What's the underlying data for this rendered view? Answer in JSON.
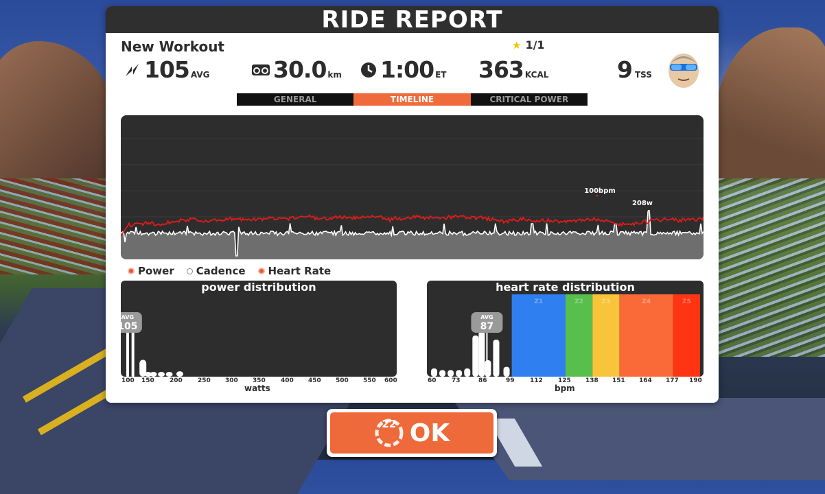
{
  "header": {
    "title": "RIDE REPORT"
  },
  "workout": {
    "name": "New Workout",
    "stars": "1/1"
  },
  "stats": {
    "power": {
      "value": "105",
      "unit": "AVG",
      "icon": "lightning-icon"
    },
    "distance": {
      "value": "30.0",
      "unit": "km",
      "icon": "bike-icon"
    },
    "time": {
      "value": "1:00",
      "unit": "ET",
      "icon": "clock-icon"
    },
    "calories": {
      "value": "363",
      "unit": "KCAL"
    },
    "tss": {
      "value": "9",
      "unit": "TSS"
    }
  },
  "tabs": [
    {
      "label": "GENERAL",
      "active": false
    },
    {
      "label": "TIMELINE",
      "active": true
    },
    {
      "label": "CRITICAL POWER",
      "active": false
    }
  ],
  "timeline": {
    "hr_max_label": "100bpm",
    "power_max_label": "208w",
    "colors": {
      "heart_rate": "#e21b1b",
      "power": "#ffffff",
      "area": "#6e6e6e"
    }
  },
  "legend": [
    {
      "label": "Power",
      "state": "on"
    },
    {
      "label": "Cadence",
      "state": "off"
    },
    {
      "label": "Heart Rate",
      "state": "on"
    }
  ],
  "power_distribution": {
    "title": "power distribution",
    "avg_label": "AVG",
    "avg_value": "105",
    "ticks": [
      "100",
      "150",
      "200",
      "250",
      "300",
      "350",
      "400",
      "450",
      "500",
      "550",
      "600"
    ],
    "xlabel": "watts"
  },
  "hr_distribution": {
    "title": "heart rate distribution",
    "avg_label": "AVG",
    "avg_value": "87",
    "ticks": [
      "60",
      "73",
      "86",
      "99",
      "112",
      "125",
      "138",
      "151",
      "164",
      "177",
      "190"
    ],
    "xlabel": "bpm",
    "zones": [
      {
        "label": "Z1",
        "color": "#2f7ff0"
      },
      {
        "label": "Z2",
        "color": "#58bf4d"
      },
      {
        "label": "Z3",
        "color": "#f8c53a"
      },
      {
        "label": "Z4",
        "color": "#fa6a38"
      },
      {
        "label": "Z5",
        "color": "#ff3412"
      }
    ]
  },
  "ok_button": {
    "label": "OK",
    "countdown": "22"
  },
  "chart_data": [
    {
      "type": "line",
      "series": [
        {
          "name": "Power"
        },
        {
          "name": "Heart Rate"
        }
      ],
      "annotations": [
        "100bpm",
        "208w"
      ]
    },
    {
      "type": "bar",
      "title": "power distribution",
      "xlabel": "watts",
      "x_ticks": [
        100,
        150,
        200,
        250,
        300,
        350,
        400,
        450,
        500,
        550,
        600
      ],
      "bins": [
        100,
        110,
        125,
        135,
        145,
        160,
        175,
        195
      ],
      "values": [
        1.0,
        0.95,
        0.28,
        0.08,
        0.08,
        0.08,
        0.08,
        0.09
      ],
      "avg": 105
    },
    {
      "type": "bar",
      "title": "heart rate distribution",
      "xlabel": "bpm",
      "x_ticks": [
        60,
        73,
        86,
        99,
        112,
        125,
        138,
        151,
        164,
        177,
        190
      ],
      "bins": [
        60,
        64,
        68,
        72,
        76,
        80,
        83,
        86,
        90,
        95
      ],
      "values": [
        0.1,
        0.08,
        0.08,
        0.08,
        0.1,
        0.5,
        0.55,
        0.2,
        0.45,
        0.12
      ],
      "zones": [
        {
          "label": "Z1",
          "from": 99,
          "to": 125
        },
        {
          "label": "Z2",
          "from": 125,
          "to": 138
        },
        {
          "label": "Z3",
          "from": 138,
          "to": 151
        },
        {
          "label": "Z4",
          "from": 151,
          "to": 177
        },
        {
          "label": "Z5",
          "from": 177,
          "to": 190
        }
      ],
      "avg": 87
    }
  ]
}
